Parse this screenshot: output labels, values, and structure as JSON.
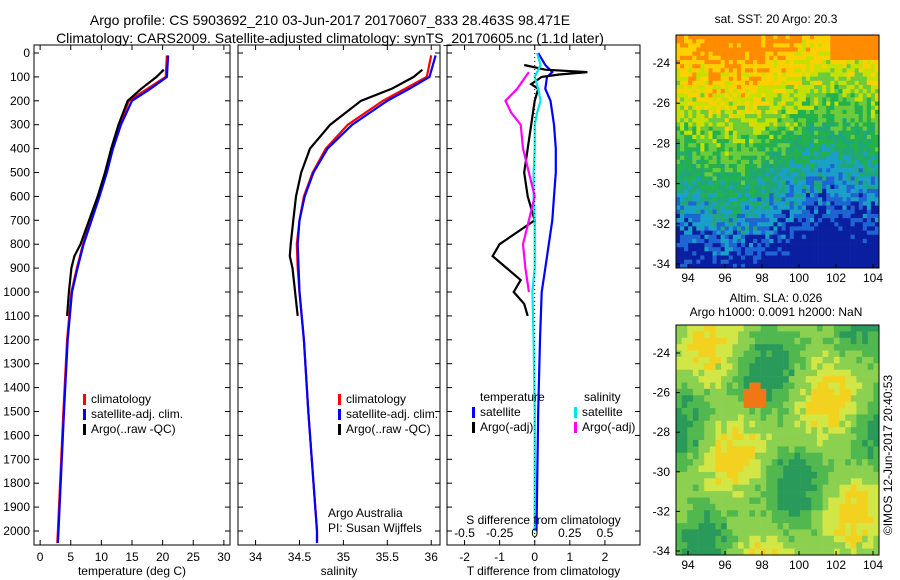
{
  "header": {
    "line1": "Argo profile: CS 5903692_210 03-Jun-2017 20170607_833 28.463S 98.471E",
    "line2": "Climatology: CARS2009. Satellite-adjusted climatology: synTS_20170605.nc (1.1d later)"
  },
  "colors": {
    "climatology": "#ff0000",
    "satellite": "#0000ff",
    "argo": "#000000",
    "sal_satellite": "#00e5e5",
    "sal_argo": "#ff00ff"
  },
  "chart_data": [
    {
      "type": "line",
      "id": "temperature",
      "xlabel": "temperature (deg C)",
      "xlim": [
        -1,
        31
      ],
      "ylim": [
        2100,
        0
      ],
      "xticks": [
        "0",
        "5",
        "10",
        "15",
        "20",
        "25",
        "30"
      ],
      "yticks": [
        "0",
        "100",
        "200",
        "300",
        "400",
        "500",
        "600",
        "700",
        "800",
        "900",
        "1000",
        "1100",
        "1200",
        "1300",
        "1400",
        "1500",
        "1600",
        "1700",
        "1800",
        "1900",
        "2000"
      ],
      "legend": [
        "climatology",
        "satellite-adj. clim.",
        "Argo(..raw -QC)"
      ],
      "series": [
        {
          "name": "climatology",
          "depth": [
            10,
            100,
            150,
            200,
            300,
            400,
            500,
            600,
            700,
            800,
            900,
            1000,
            1200,
            1500,
            2000,
            2050
          ],
          "values": [
            20.7,
            20.5,
            17.5,
            14.5,
            13.0,
            11.8,
            10.8,
            9.6,
            8.3,
            7.0,
            6.0,
            5.1,
            4.4,
            3.8,
            2.9,
            2.8
          ]
        },
        {
          "name": "satellite-adj. clim.",
          "depth": [
            10,
            100,
            150,
            200,
            300,
            400,
            500,
            600,
            700,
            800,
            900,
            1000,
            1200,
            1500,
            2000,
            2050
          ],
          "values": [
            20.9,
            20.7,
            18.0,
            15.0,
            13.2,
            11.9,
            10.9,
            9.7,
            8.4,
            7.1,
            6.1,
            5.2,
            4.5,
            3.9,
            3.0,
            2.9
          ]
        },
        {
          "name": "Argo(..raw -QC)",
          "depth": [
            70,
            100,
            150,
            200,
            300,
            400,
            500,
            600,
            700,
            800,
            850,
            900,
            1000,
            1100
          ],
          "values": [
            20.2,
            19.0,
            16.5,
            14.3,
            12.8,
            11.6,
            10.6,
            9.4,
            8.0,
            6.6,
            5.6,
            5.1,
            4.7,
            4.4
          ]
        }
      ]
    },
    {
      "type": "line",
      "id": "salinity",
      "xlabel": "salinity",
      "xlim": [
        33.8,
        36.1
      ],
      "ylim": [
        2100,
        0
      ],
      "xticks": [
        "34",
        "34.5",
        "35",
        "35.5",
        "36"
      ],
      "legend": [
        "climatology",
        "satellite-adj. clim.",
        "Argo(..raw -QC)"
      ],
      "annotation": [
        "Argo Australia",
        "PI: Susan Wijffels"
      ],
      "series": [
        {
          "name": "climatology",
          "depth": [
            10,
            100,
            150,
            200,
            300,
            400,
            500,
            600,
            700,
            800,
            900,
            1000,
            1200,
            1500,
            2000,
            2050
          ],
          "values": [
            36.0,
            35.95,
            35.7,
            35.45,
            35.05,
            34.8,
            34.65,
            34.55,
            34.5,
            34.47,
            34.48,
            34.5,
            34.55,
            34.6,
            34.7,
            34.7
          ]
        },
        {
          "name": "satellite-adj. clim.",
          "depth": [
            10,
            100,
            150,
            200,
            300,
            400,
            500,
            600,
            700,
            800,
            900,
            1000,
            1200,
            1500,
            2000,
            2050
          ],
          "values": [
            36.05,
            35.98,
            35.75,
            35.5,
            35.1,
            34.82,
            34.66,
            34.56,
            34.5,
            34.48,
            34.49,
            34.5,
            34.55,
            34.6,
            34.7,
            34.7
          ]
        },
        {
          "name": "Argo(..raw -QC)",
          "depth": [
            70,
            100,
            150,
            200,
            300,
            400,
            500,
            600,
            700,
            800,
            850,
            900,
            1000,
            1100
          ],
          "values": [
            35.9,
            35.8,
            35.55,
            35.2,
            34.85,
            34.62,
            34.52,
            34.46,
            34.43,
            34.4,
            34.39,
            34.42,
            34.45,
            34.48
          ]
        }
      ]
    },
    {
      "type": "line",
      "id": "difference",
      "xlabel": "T difference from climatology",
      "xlim": [
        -2.5,
        3.0
      ],
      "ylim": [
        2100,
        0
      ],
      "xticks": [
        "-2",
        "-1",
        "0",
        "1",
        "2"
      ],
      "x2label": "S difference from climatology",
      "x2ticks": [
        "-0.5",
        "-0.25",
        "0",
        "0.25",
        "0.5"
      ],
      "legend_headers": [
        "temperature",
        "salinity"
      ],
      "legend": [
        "satellite",
        "Argo(-adj)",
        "satellite",
        "Argo(-adj)"
      ],
      "series": [
        {
          "name": "temperature satellite",
          "depth": [
            0,
            50,
            80,
            100,
            150,
            200,
            300,
            400,
            500,
            600,
            700,
            800,
            900,
            1000,
            1200,
            1500,
            2000
          ],
          "values": [
            0.1,
            0.3,
            0.5,
            0.35,
            0.3,
            0.45,
            0.55,
            0.6,
            0.6,
            0.55,
            0.5,
            0.4,
            0.3,
            0.2,
            0.15,
            0.1,
            0.05
          ]
        },
        {
          "name": "temperature Argo(-adj)",
          "depth": [
            50,
            70,
            80,
            90,
            100,
            130,
            150,
            200,
            300,
            400,
            500,
            600,
            700,
            800,
            850,
            900,
            950,
            1000,
            1050,
            1100
          ],
          "values": [
            -0.3,
            0.3,
            1.5,
            0.7,
            0.2,
            -0.1,
            0.1,
            0.0,
            -0.1,
            -0.2,
            -0.3,
            -0.2,
            0.0,
            -1.0,
            -1.2,
            -0.8,
            -0.4,
            -0.6,
            -0.3,
            -0.2
          ]
        },
        {
          "name": "salinity satellite",
          "depth": [
            0,
            50,
            100,
            150,
            200,
            250,
            300,
            400,
            500,
            600,
            700,
            800,
            900,
            1000,
            1200,
            1500,
            2000
          ],
          "values": [
            0.02,
            0.05,
            0.0,
            0.03,
            0.05,
            0.02,
            0.0,
            0.0,
            -0.01,
            -0.01,
            0.0,
            0.0,
            0.0,
            -0.02,
            -0.01,
            0.0,
            0.0
          ]
        },
        {
          "name": "salinity Argo(-adj)",
          "depth": [
            80,
            100,
            150,
            200,
            250,
            300,
            400,
            500,
            600,
            700,
            800,
            900,
            1000
          ],
          "values": [
            -0.05,
            -0.08,
            -0.15,
            -0.25,
            -0.2,
            -0.12,
            -0.1,
            -0.05,
            0.0,
            -0.05,
            -0.1,
            -0.08,
            -0.05
          ]
        }
      ]
    },
    {
      "type": "heatmap",
      "id": "sst-map",
      "title": "sat. SST: 20 Argo: 20.3",
      "xticks": [
        "94",
        "96",
        "98",
        "100",
        "102",
        "104"
      ],
      "yticks": [
        "-24",
        "-26",
        "-28",
        "-30",
        "-32",
        "-34"
      ]
    },
    {
      "type": "heatmap",
      "id": "sla-map",
      "title_lines": [
        "Altim. SLA: 0.026",
        "Argo h1000: 0.0091 h2000: NaN"
      ],
      "xticks": [
        "94",
        "96",
        "98",
        "100",
        "102",
        "104"
      ],
      "yticks": [
        "-24",
        "-26",
        "-28",
        "-30",
        "-32",
        "-34"
      ]
    }
  ],
  "footer": {
    "credit": "©IMOS 12-Jun-2017 20:40:53"
  }
}
